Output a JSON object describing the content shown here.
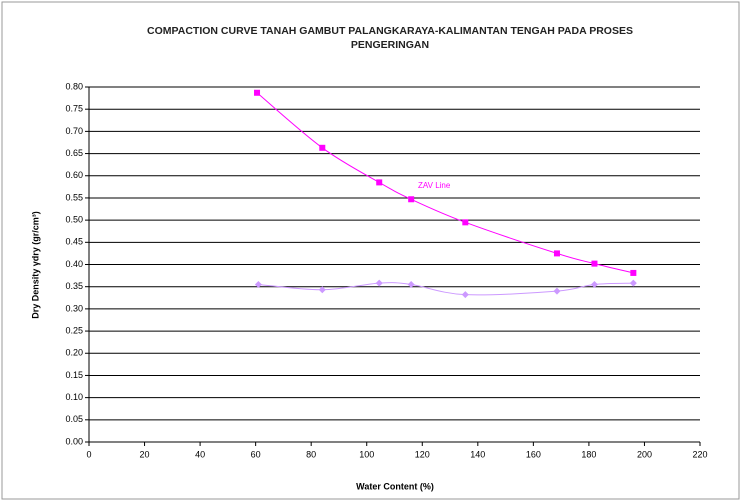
{
  "chart_data": {
    "type": "line",
    "title": "COMPACTION CURVE TANAH GAMBUT PALANGKARAYA-KALIMANTAN TENGAH PADA PROSES PENGERINGAN",
    "xlabel": "Water Content (%)",
    "ylabel": "Dry Density γdry (gr/cm³)",
    "annotation": "ZAV Line",
    "xlim": [
      0,
      220
    ],
    "xticks": [
      0,
      20,
      40,
      60,
      80,
      100,
      120,
      140,
      160,
      180,
      200,
      220
    ],
    "ylim": [
      0,
      0.8
    ],
    "yticks": [
      {
        "value": 0,
        "label": "0.00"
      },
      0.05,
      {
        "value": 0.1,
        "label": "0.10"
      },
      0.15,
      {
        "value": 0.2,
        "label": "0.20"
      },
      0.25,
      {
        "value": 0.3,
        "label": "0.30"
      },
      0.35,
      {
        "value": 0.4,
        "label": "0.40"
      },
      0.45,
      {
        "value": 0.5,
        "label": "0.50"
      },
      0.55,
      {
        "value": 0.6,
        "label": "0.60"
      },
      0.65,
      {
        "value": 0.7,
        "label": "0.70"
      },
      0.75,
      {
        "value": 0.8,
        "label": "0.80"
      }
    ],
    "grid": true,
    "series": [
      {
        "color": "#ff00ff",
        "marker": "square",
        "x": [
          60.5,
          84,
          104.5,
          116,
          135.5,
          168.5,
          182,
          196
        ],
        "values": [
          0.787,
          0.663,
          0.585,
          0.547,
          0.495,
          0.425,
          0.402,
          0.381
        ]
      },
      {
        "color": "#cc99ff",
        "marker": "diamond",
        "x": [
          61,
          84,
          104.5,
          116,
          135.5,
          168.5,
          182,
          196
        ],
        "values": [
          0.355,
          0.343,
          0.358,
          0.355,
          0.332,
          0.34,
          0.355,
          0.358
        ]
      }
    ]
  }
}
